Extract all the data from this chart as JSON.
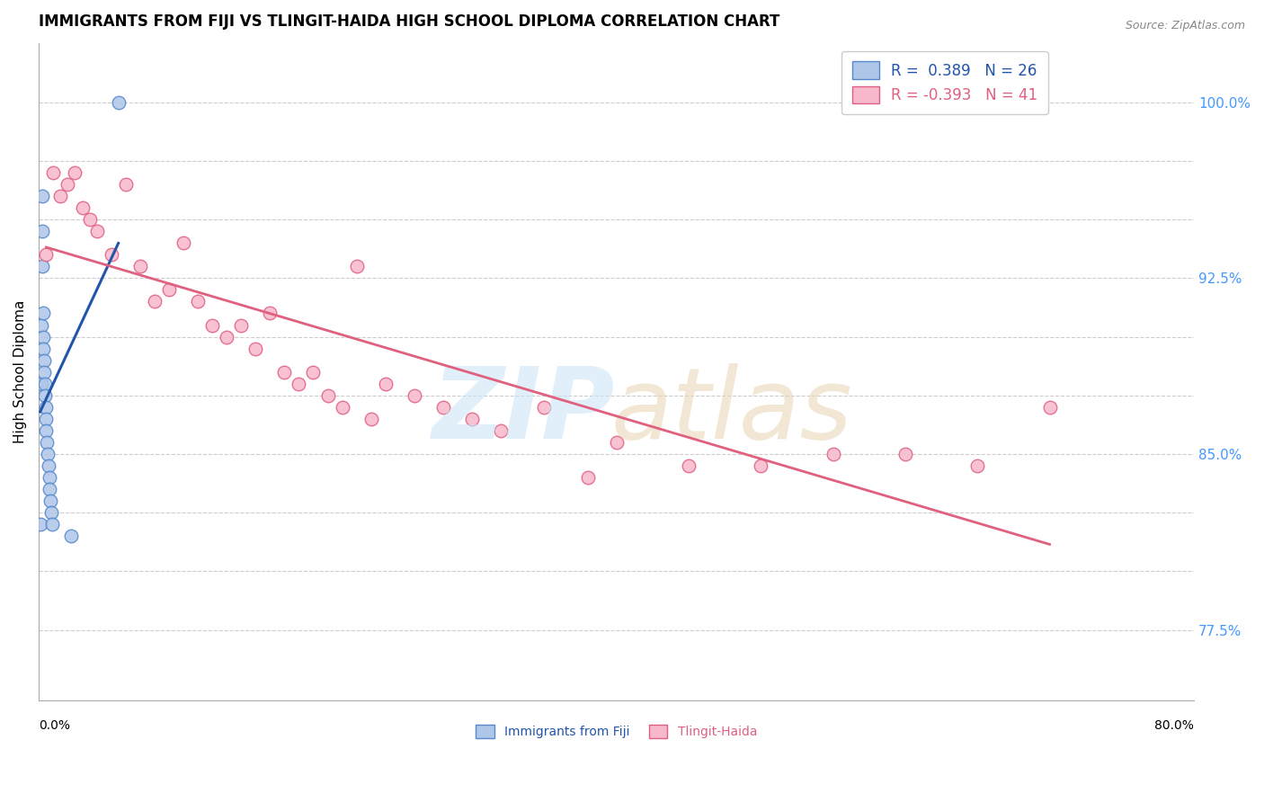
{
  "title": "IMMIGRANTS FROM FIJI VS TLINGIT-HAIDA HIGH SCHOOL DIPLOMA CORRELATION CHART",
  "source": "Source: ZipAtlas.com",
  "ylabel": "High School Diploma",
  "xlim": [
    0.0,
    80.0
  ],
  "ylim": [
    74.5,
    102.5
  ],
  "y_tick_positions": [
    77.5,
    80.0,
    82.5,
    85.0,
    87.5,
    90.0,
    92.5,
    95.0,
    97.5,
    100.0
  ],
  "y_tick_labels_right": [
    "77.5%",
    "",
    "",
    "85.0%",
    "",
    "",
    "92.5%",
    "",
    "",
    "100.0%"
  ],
  "fiji_color": "#aec6e8",
  "tlingit_color": "#f7b8cc",
  "fiji_edge_color": "#5588cc",
  "tlingit_edge_color": "#e06080",
  "fiji_line_color": "#2255aa",
  "tlingit_line_color": "#e06080",
  "background_color": "#ffffff",
  "legend_r1": "R =  0.389   N = 26",
  "legend_r2": "R = -0.393   N = 41",
  "fiji_x": [
    0.08,
    0.15,
    0.18,
    0.2,
    0.22,
    0.25,
    0.28,
    0.3,
    0.32,
    0.35,
    0.38,
    0.4,
    0.42,
    0.45,
    0.48,
    0.5,
    0.55,
    0.6,
    0.65,
    0.7,
    0.75,
    0.8,
    0.85,
    0.9,
    2.2,
    5.5
  ],
  "fiji_y": [
    82.0,
    88.0,
    90.5,
    93.0,
    94.5,
    96.0,
    91.0,
    90.0,
    89.5,
    89.0,
    88.5,
    88.0,
    87.5,
    87.0,
    86.5,
    86.0,
    85.5,
    85.0,
    84.5,
    84.0,
    83.5,
    83.0,
    82.5,
    82.0,
    81.5,
    100.0
  ],
  "tlingit_x": [
    0.5,
    1.0,
    1.5,
    2.0,
    2.5,
    3.0,
    3.5,
    4.0,
    5.0,
    6.0,
    7.0,
    8.0,
    9.0,
    10.0,
    11.0,
    12.0,
    13.0,
    14.0,
    15.0,
    16.0,
    17.0,
    18.0,
    19.0,
    20.0,
    21.0,
    22.0,
    23.0,
    24.0,
    26.0,
    28.0,
    30.0,
    32.0,
    35.0,
    38.0,
    40.0,
    45.0,
    50.0,
    55.0,
    60.0,
    65.0,
    70.0
  ],
  "tlingit_y": [
    93.5,
    97.0,
    96.0,
    96.5,
    97.0,
    95.5,
    95.0,
    94.5,
    93.5,
    96.5,
    93.0,
    91.5,
    92.0,
    94.0,
    91.5,
    90.5,
    90.0,
    90.5,
    89.5,
    91.0,
    88.5,
    88.0,
    88.5,
    87.5,
    87.0,
    93.0,
    86.5,
    88.0,
    87.5,
    87.0,
    86.5,
    86.0,
    87.0,
    84.0,
    85.5,
    84.5,
    84.5,
    85.0,
    85.0,
    84.5,
    87.0
  ]
}
